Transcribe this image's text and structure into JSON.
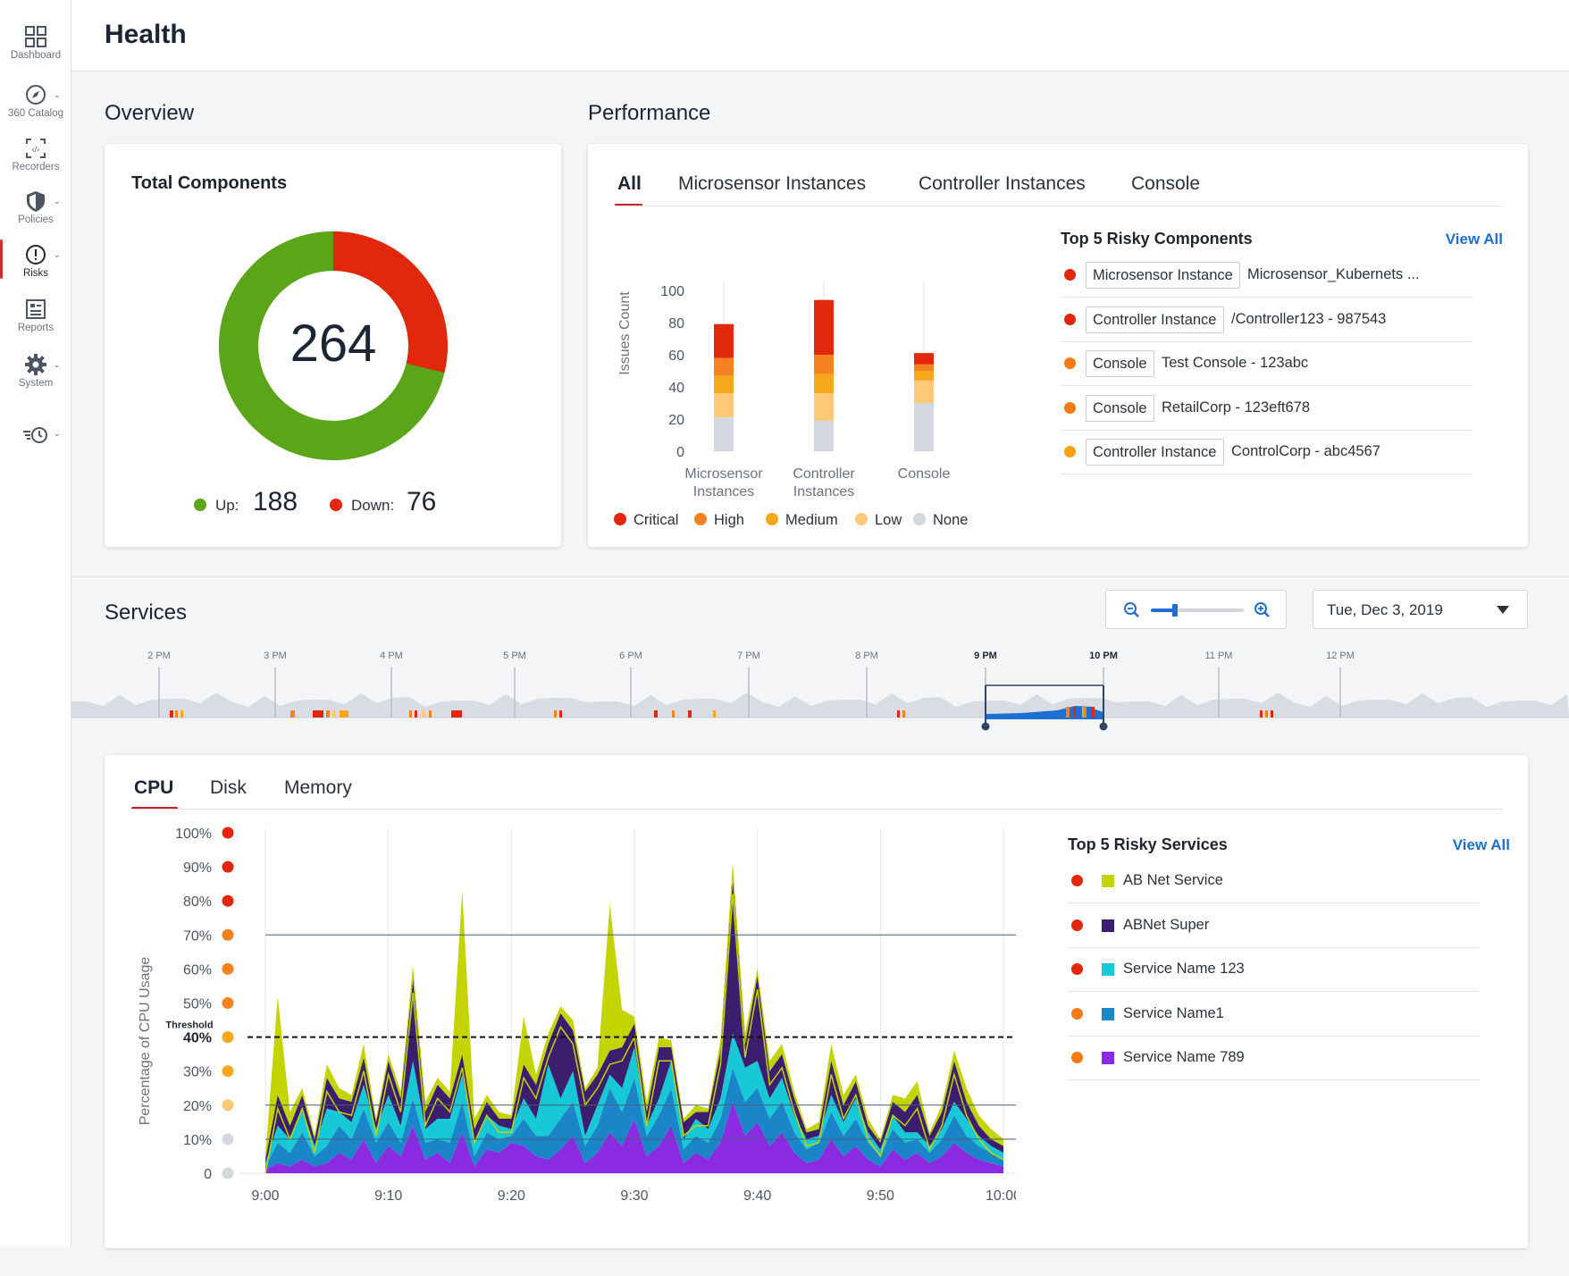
{
  "sidebar": {
    "items": [
      {
        "label": "Dashboard",
        "icon": "dashboard-icon"
      },
      {
        "label": "360 Catalog",
        "icon": "compass-icon"
      },
      {
        "label": "Recorders",
        "icon": "recorder-icon"
      },
      {
        "label": "Policies",
        "icon": "shield-icon"
      },
      {
        "label": "Risks",
        "icon": "alert-circle-icon",
        "active": true
      },
      {
        "label": "Reports",
        "icon": "report-icon"
      },
      {
        "label": "System",
        "icon": "gear-icon"
      },
      {
        "label": "",
        "icon": "history-icon"
      }
    ]
  },
  "header": {
    "title": "Health"
  },
  "overview": {
    "section_title": "Overview",
    "card_title": "Total Components",
    "total": "264",
    "up_label": "Up:",
    "up_value": "188",
    "down_label": "Down:",
    "down_value": "76",
    "up_color": "#5aa51a",
    "down_color": "#e2270f"
  },
  "performance": {
    "section_title": "Performance",
    "tabs": [
      "All",
      "Microsensor Instances",
      "Controller Instances",
      "Console"
    ],
    "active_tab": "All",
    "risky_title": "Top 5 Risky Components",
    "view_all": "View All",
    "components": [
      {
        "severity_color": "#e2270f",
        "type": "Microsensor Instance",
        "name": "Microsensor_Kubernets ..."
      },
      {
        "severity_color": "#e2270f",
        "type": "Controller Instance",
        "name": "/Controller123 - 987543"
      },
      {
        "severity_color": "#f47b16",
        "type": "Console",
        "name": "Test Console - 123abc"
      },
      {
        "severity_color": "#f47b16",
        "type": "Console",
        "name": "RetailCorp - 123eft678"
      },
      {
        "severity_color": "#f5a30f",
        "type": "Controller Instance",
        "name": "ControlCorp - abc4567"
      }
    ]
  },
  "services": {
    "section_title": "Services",
    "date": "Tue, Dec 3, 2019",
    "zoom_level": 0.25,
    "timeline_labels": [
      "2 PM",
      "3 PM",
      "4 PM",
      "5 PM",
      "6 PM",
      "7 PM",
      "8 PM",
      "9 PM",
      "10 PM",
      "11 PM",
      "12 PM"
    ],
    "selected_range": [
      "9 PM",
      "10 PM"
    ]
  },
  "usage": {
    "tabs": [
      "CPU",
      "Disk",
      "Memory"
    ],
    "active_tab": "CPU",
    "risky_title": "Top 5 Risky Services",
    "view_all": "View All",
    "services": [
      {
        "severity_color": "#e2270f",
        "color": "#c4d400",
        "name": "AB Net Service"
      },
      {
        "severity_color": "#e2270f",
        "color": "#3b1f6e",
        "name": "ABNet Super"
      },
      {
        "severity_color": "#e2270f",
        "color": "#17c9d6",
        "name": "Service Name 123"
      },
      {
        "severity_color": "#f47b16",
        "color": "#1a86c8",
        "name": "Service Name1"
      },
      {
        "severity_color": "#f47b16",
        "color": "#8a2be2",
        "name": "Service Name 789"
      }
    ]
  },
  "chart_data": [
    {
      "type": "pie",
      "title": "Total Components",
      "center_label": "264",
      "slices": [
        {
          "name": "Up",
          "value": 188,
          "color": "#5aa51a"
        },
        {
          "name": "Down",
          "value": 76,
          "color": "#e2270f"
        }
      ]
    },
    {
      "type": "bar",
      "stacked": true,
      "categories": [
        "Microsensor Instances",
        "Controller Instances",
        "Console"
      ],
      "ylabel": "Issues Count",
      "ylim": [
        0,
        100
      ],
      "yticks": [
        0,
        20,
        40,
        60,
        80,
        100
      ],
      "legend_position": "bottom",
      "series": [
        {
          "name": "None",
          "color": "#d3d8de",
          "values": [
            21,
            19,
            30
          ]
        },
        {
          "name": "Low",
          "color": "#fbc977",
          "values": [
            15,
            17,
            14
          ]
        },
        {
          "name": "Medium",
          "color": "#f7a71b",
          "values": [
            11,
            12,
            6
          ]
        },
        {
          "name": "High",
          "color": "#f6821f",
          "values": [
            11,
            12,
            4
          ]
        },
        {
          "name": "Critical",
          "color": "#e2270f",
          "values": [
            21,
            34,
            7
          ]
        }
      ]
    },
    {
      "type": "area",
      "stacked": true,
      "ylabel": "Percentage of CPU Usage",
      "ylim": [
        0,
        100
      ],
      "yticks": [
        "0",
        "10%",
        "20%",
        "30%",
        "40%",
        "50%",
        "60%",
        "70%",
        "80%",
        "90%",
        "100%"
      ],
      "ytick_colors": [
        "#d3d8de",
        "#d3d8de",
        "#fbc977",
        "#f7a71b",
        "#f7a71b",
        "#f6821f",
        "#f6821f",
        "#f6821f",
        "#e2270f",
        "#e2270f",
        "#e2270f"
      ],
      "threshold": {
        "label": "Threshold",
        "value": 40
      },
      "reference_lines": [
        10,
        20,
        70
      ],
      "xticks": [
        "9:00",
        "9:10",
        "9:20",
        "9:30",
        "9:40",
        "9:50",
        "10:00"
      ],
      "series": [
        {
          "name": "Service Name 789",
          "color": "#8a2be2",
          "values": [
            1,
            3,
            2,
            4,
            2,
            3,
            6,
            4,
            10,
            3,
            8,
            5,
            14,
            4,
            6,
            3,
            12,
            2,
            7,
            6,
            9,
            8,
            5,
            4,
            7,
            11,
            3,
            6,
            12,
            8,
            16,
            5,
            8,
            14,
            3,
            6,
            4,
            9,
            21,
            11,
            15,
            8,
            12,
            6,
            3,
            4,
            10,
            5,
            8,
            4,
            2,
            7,
            4,
            6,
            3,
            5,
            9,
            6,
            4,
            3,
            2
          ]
        },
        {
          "name": "Service Name1",
          "color": "#1a86c8",
          "values": [
            1,
            6,
            4,
            8,
            3,
            5,
            8,
            6,
            9,
            6,
            7,
            4,
            8,
            5,
            4,
            6,
            9,
            3,
            5,
            4,
            2,
            8,
            6,
            7,
            9,
            10,
            5,
            8,
            13,
            10,
            12,
            6,
            9,
            11,
            4,
            5,
            5,
            7,
            10,
            10,
            10,
            8,
            9,
            6,
            4,
            5,
            8,
            6,
            8,
            5,
            3,
            6,
            5,
            4,
            3,
            5,
            8,
            5,
            4,
            3,
            2
          ]
        },
        {
          "name": "Service Name 123",
          "color": "#17c9d6",
          "values": [
            1,
            5,
            4,
            7,
            3,
            11,
            4,
            5,
            7,
            4,
            8,
            5,
            11,
            4,
            6,
            7,
            8,
            4,
            5,
            4,
            2,
            6,
            5,
            21,
            6,
            9,
            3,
            6,
            4,
            7,
            9,
            3,
            5,
            8,
            3,
            5,
            4,
            6,
            10,
            10,
            8,
            6,
            7,
            5,
            3,
            2,
            5,
            4,
            6,
            3,
            2,
            4,
            3,
            2,
            2,
            3,
            4,
            5,
            3,
            2,
            2
          ]
        },
        {
          "name": "ABNet Super",
          "color": "#3b1f6e",
          "values": [
            1,
            9,
            4,
            4,
            2,
            9,
            4,
            6,
            8,
            2,
            10,
            8,
            24,
            5,
            10,
            6,
            6,
            4,
            4,
            2,
            3,
            10,
            10,
            6,
            25,
            12,
            13,
            9,
            7,
            12,
            7,
            4,
            15,
            4,
            5,
            2,
            5,
            14,
            45,
            7,
            25,
            8,
            7,
            5,
            2,
            2,
            10,
            5,
            5,
            2,
            2,
            4,
            6,
            11,
            3,
            5,
            12,
            5,
            3,
            2,
            2
          ]
        },
        {
          "name": "AB Net Service",
          "color": "#c4d400",
          "values": [
            1,
            29,
            4,
            2,
            1,
            4,
            3,
            2,
            4,
            1,
            2,
            2,
            4,
            3,
            2,
            2,
            48,
            3,
            2,
            2,
            1,
            14,
            3,
            3,
            2,
            3,
            1,
            2,
            43,
            11,
            2,
            3,
            3,
            2,
            1,
            2,
            1,
            3,
            5,
            3,
            2,
            3,
            3,
            2,
            1,
            2,
            5,
            3,
            2,
            2,
            1,
            2,
            4,
            4,
            1,
            2,
            3,
            4,
            3,
            3,
            2
          ]
        }
      ]
    }
  ]
}
